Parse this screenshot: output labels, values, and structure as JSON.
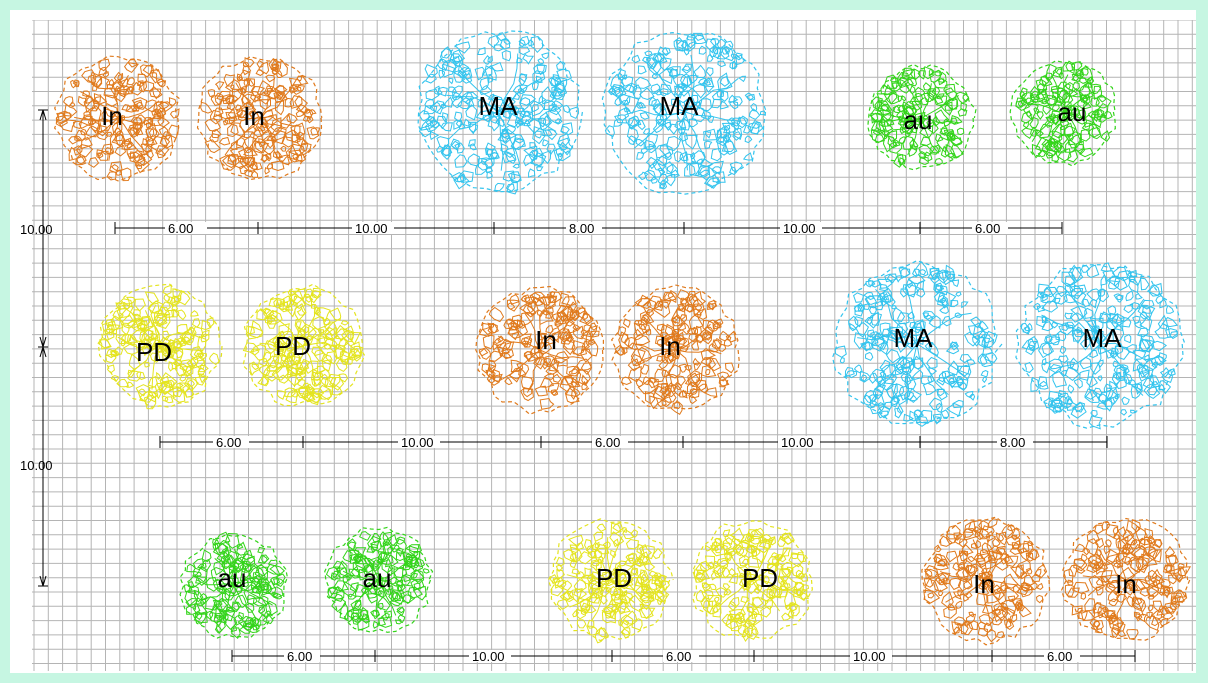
{
  "colors": {
    "frame": "#c6f6e2",
    "grid": "#b4b4b4",
    "In": "#e07a1c",
    "MA": "#33c4ee",
    "au": "#33d41a",
    "PD": "#e4e41e",
    "dimension": "#000000"
  },
  "trees": [
    {
      "label": "In",
      "species": "In"
    },
    {
      "label": "In",
      "species": "In"
    },
    {
      "label": "MA",
      "species": "MA"
    },
    {
      "label": "MA",
      "species": "MA"
    },
    {
      "label": "au",
      "species": "au"
    },
    {
      "label": "au",
      "species": "au"
    },
    {
      "label": "PD",
      "species": "PD"
    },
    {
      "label": "PD",
      "species": "PD"
    },
    {
      "label": "In",
      "species": "In"
    },
    {
      "label": "In",
      "species": "In"
    },
    {
      "label": "MA",
      "species": "MA"
    },
    {
      "label": "MA",
      "species": "MA"
    },
    {
      "label": "au",
      "species": "au"
    },
    {
      "label": "au",
      "species": "au"
    },
    {
      "label": "PD",
      "species": "PD"
    },
    {
      "label": "PD",
      "species": "PD"
    },
    {
      "label": "In",
      "species": "In"
    },
    {
      "label": "In",
      "species": "In"
    }
  ],
  "row_dimensions": [
    [
      "6.00",
      "10.00",
      "8.00",
      "10.00",
      "6.00"
    ],
    [
      "6.00",
      "10.00",
      "6.00",
      "10.00",
      "8.00"
    ],
    [
      "6.00",
      "10.00",
      "6.00",
      "10.00",
      "6.00"
    ]
  ],
  "vertical_dimensions": [
    "10.00",
    "10.00"
  ]
}
